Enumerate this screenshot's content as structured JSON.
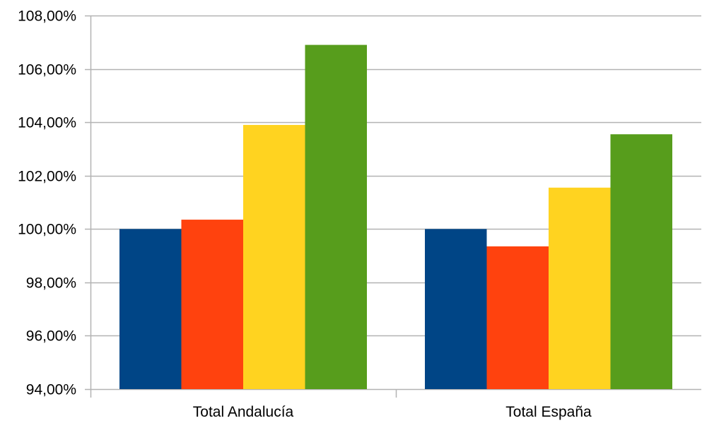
{
  "chart_data": {
    "type": "bar",
    "categories": [
      "Total Andalucía",
      "Total España"
    ],
    "series": [
      {
        "color": "#004586",
        "values": [
          100.0,
          100.0
        ]
      },
      {
        "color": "#ff420e",
        "values": [
          100.35,
          99.35
        ]
      },
      {
        "color": "#ffd320",
        "values": [
          103.9,
          101.55
        ]
      },
      {
        "color": "#579d1c",
        "values": [
          106.9,
          103.55
        ]
      }
    ],
    "ylim": [
      94,
      108
    ],
    "y_ticks": [
      94,
      96,
      98,
      100,
      102,
      104,
      106,
      108
    ],
    "y_tick_labels": [
      "94,00%",
      "96,00%",
      "98,00%",
      "100,00%",
      "102,00%",
      "104,00%",
      "106,00%",
      "108,00%"
    ],
    "grid": true,
    "legend": "none",
    "grid_color": "#b3b3b3",
    "axis_color": "#b3b3b3"
  }
}
